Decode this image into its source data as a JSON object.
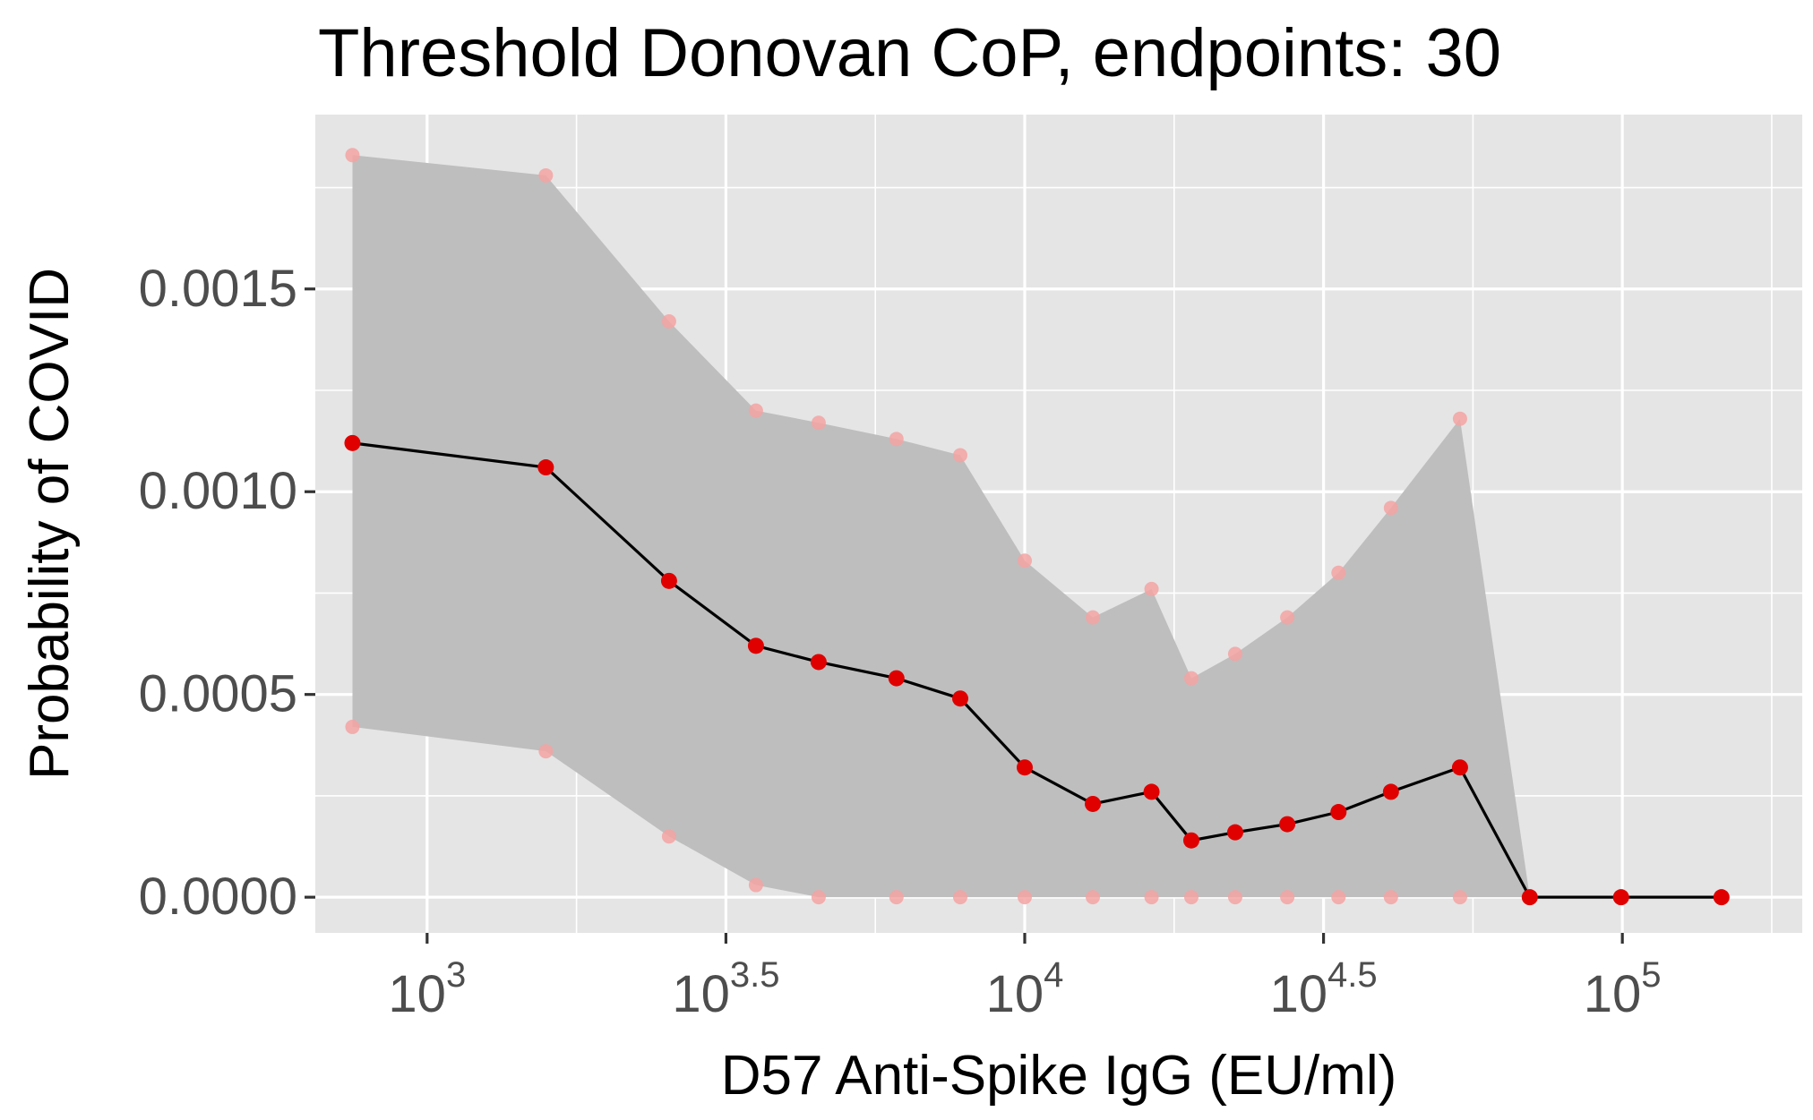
{
  "chart_data": {
    "type": "line",
    "title": "Threshold Donovan CoP, endpoints: 30",
    "xlabel": "D57 Anti-Spike IgG (EU/ml)",
    "ylabel": "Probability of COVID",
    "x_scale": "log10",
    "xlim": [
      650,
      200000
    ],
    "ylim": [
      -8.8e-05,
      0.00193
    ],
    "x_ticks": [
      {
        "value": 1000,
        "base": "10",
        "exp": "3"
      },
      {
        "value": 3162.28,
        "base": "10",
        "exp": "3.5"
      },
      {
        "value": 10000,
        "base": "10",
        "exp": "4"
      },
      {
        "value": 31622.8,
        "base": "10",
        "exp": "4.5"
      },
      {
        "value": 100000,
        "base": "10",
        "exp": "5"
      }
    ],
    "y_ticks": [
      {
        "value": 0.0,
        "label": "0.0000"
      },
      {
        "value": 0.0005,
        "label": "0.0005"
      },
      {
        "value": 0.001,
        "label": "0.0010"
      },
      {
        "value": 0.0015,
        "label": "0.0015"
      }
    ],
    "grid": true,
    "colors": {
      "panel": "#e5e5e5",
      "grid": "#ffffff",
      "band": "#bebebe",
      "line": "#000000",
      "point": "#e00000",
      "bound_point": "#f4a3a3"
    },
    "series": [
      {
        "x": [
          750,
          1580,
          2540,
          3550,
          4520,
          6100,
          7800,
          10000,
          13000,
          16300,
          19000,
          22500,
          27500,
          33500,
          41000,
          53500,
          70000,
          99500,
          146500
        ],
        "estimate": [
          0.00112,
          0.00106,
          0.00078,
          0.00062,
          0.00058,
          0.00054,
          0.00049,
          0.00032,
          0.00023,
          0.00026,
          0.00014,
          0.00016,
          0.00018,
          0.00021,
          0.00026,
          0.00032,
          0.0,
          0.0,
          0.0
        ],
        "lower": [
          0.00042,
          0.00036,
          0.00015,
          3e-05,
          0.0,
          0.0,
          0.0,
          0.0,
          0.0,
          0.0,
          0.0,
          0.0,
          0.0,
          0.0,
          0.0,
          0.0,
          0.0,
          0.0,
          0.0
        ],
        "upper": [
          0.00183,
          0.00178,
          0.00142,
          0.0012,
          0.00117,
          0.00113,
          0.00109,
          0.00083,
          0.00069,
          0.00076,
          0.00054,
          0.0006,
          0.00069,
          0.0008,
          0.00096,
          0.00118,
          0.0,
          0.0,
          0.0
        ]
      }
    ]
  }
}
